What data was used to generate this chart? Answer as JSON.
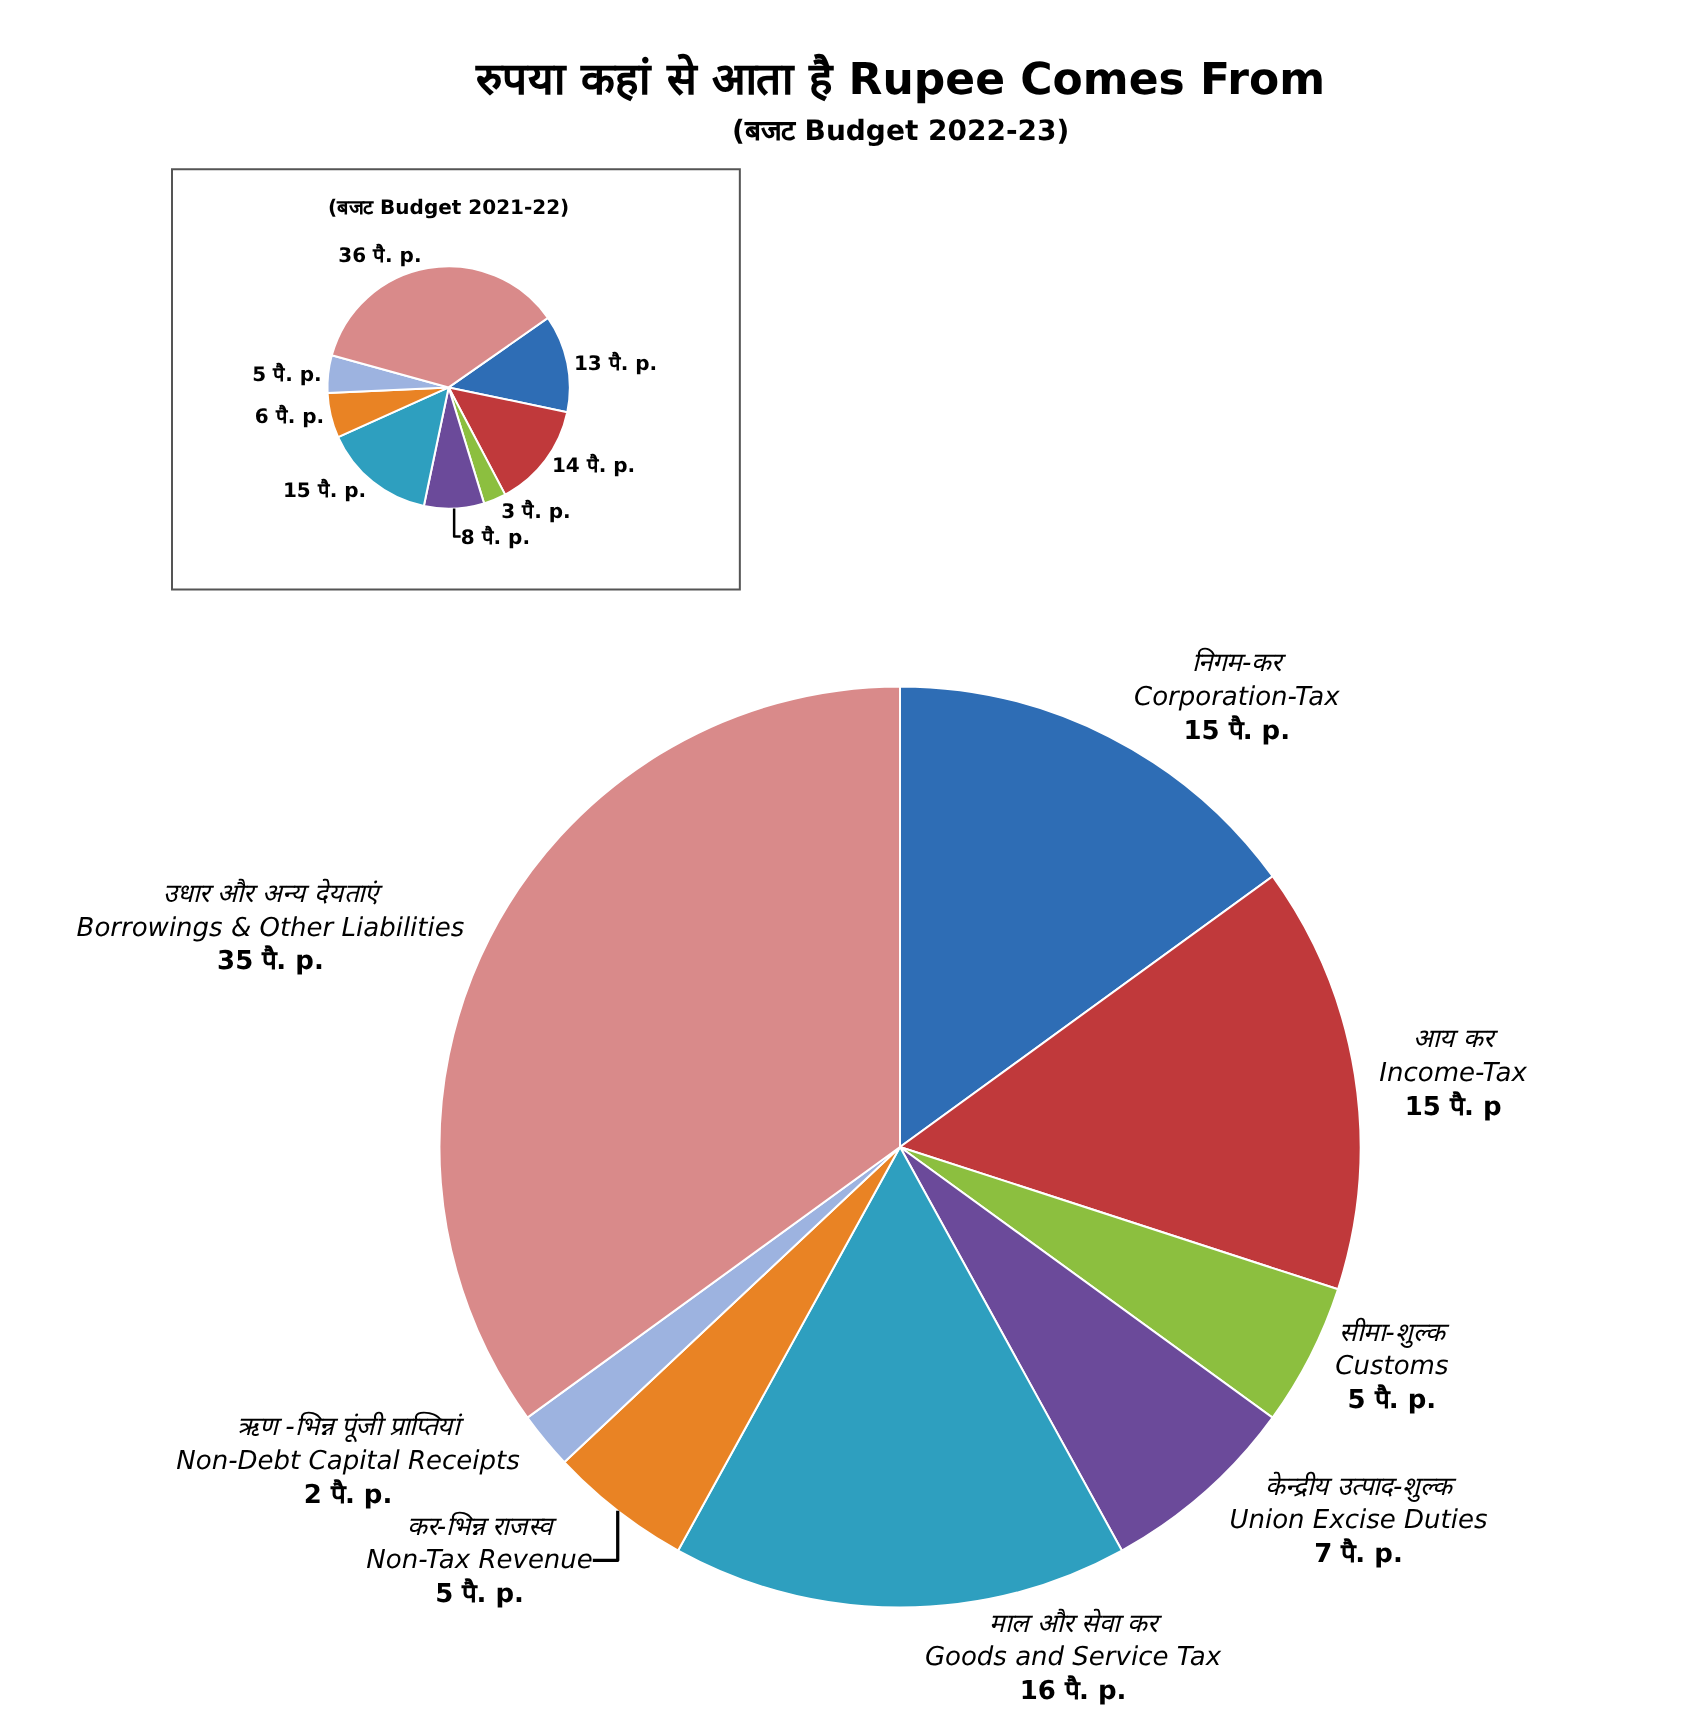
{
  "chart_data": [
    {
      "type": "pie",
      "title": "रुपया कहां से आता है Rupee Comes From",
      "subtitle": "(बजट Budget 2022-23)",
      "categories": [
        "निगम-कर\nCorporation-Tax",
        "आय कर\nIncome-Tax",
        "सीमा-शुल्क\nCustoms",
        "केन्द्रीय उत्पाद-शुल्क\nUnion Excise Duties",
        "माल और सेवा कर\nGoods and Service Tax",
        "कर-भिन्न राजस्व\nNon-Tax Revenue",
        "ऋण -भिन्न पूंजी प्राप्तियां\nNon-Debt Capital Receipts",
        "उधार और अन्य देयताएं\nBorrowings & Other Liabilities"
      ],
      "values": [
        15,
        15,
        5,
        7,
        16,
        5,
        2,
        35
      ],
      "value_labels": [
        "15 पै. p.",
        "15 पै. p",
        "5 पै. p.",
        "7 पै. p.",
        "16 पै. p.",
        "5 पै. p.",
        "2 पै. p.",
        "35 पै. p."
      ],
      "colors": [
        "#2e6db5",
        "#c0393b",
        "#8cbf3f",
        "#6b4a9a",
        "#2e9fbf",
        "#e98324",
        "#9db3e0",
        "#d98a8a"
      ]
    },
    {
      "type": "pie",
      "title": "(बजट Budget 2021-22)",
      "categories": [
        null,
        null,
        null,
        null,
        null,
        null,
        null,
        null
      ],
      "values": [
        13,
        14,
        3,
        8,
        15,
        6,
        5,
        36
      ],
      "value_labels": [
        "13 पै. p.",
        "14 पै. p.",
        "3 पै. p.",
        "8 पै. p.",
        "15 पै. p.",
        "6 पै. p.",
        "5 पै. p.",
        "36 पै. p."
      ],
      "colors": [
        "#2e6db5",
        "#c0393b",
        "#8cbf3f",
        "#6b4a9a",
        "#2e9fbf",
        "#e98324",
        "#9db3e0",
        "#d98a8a"
      ]
    }
  ]
}
